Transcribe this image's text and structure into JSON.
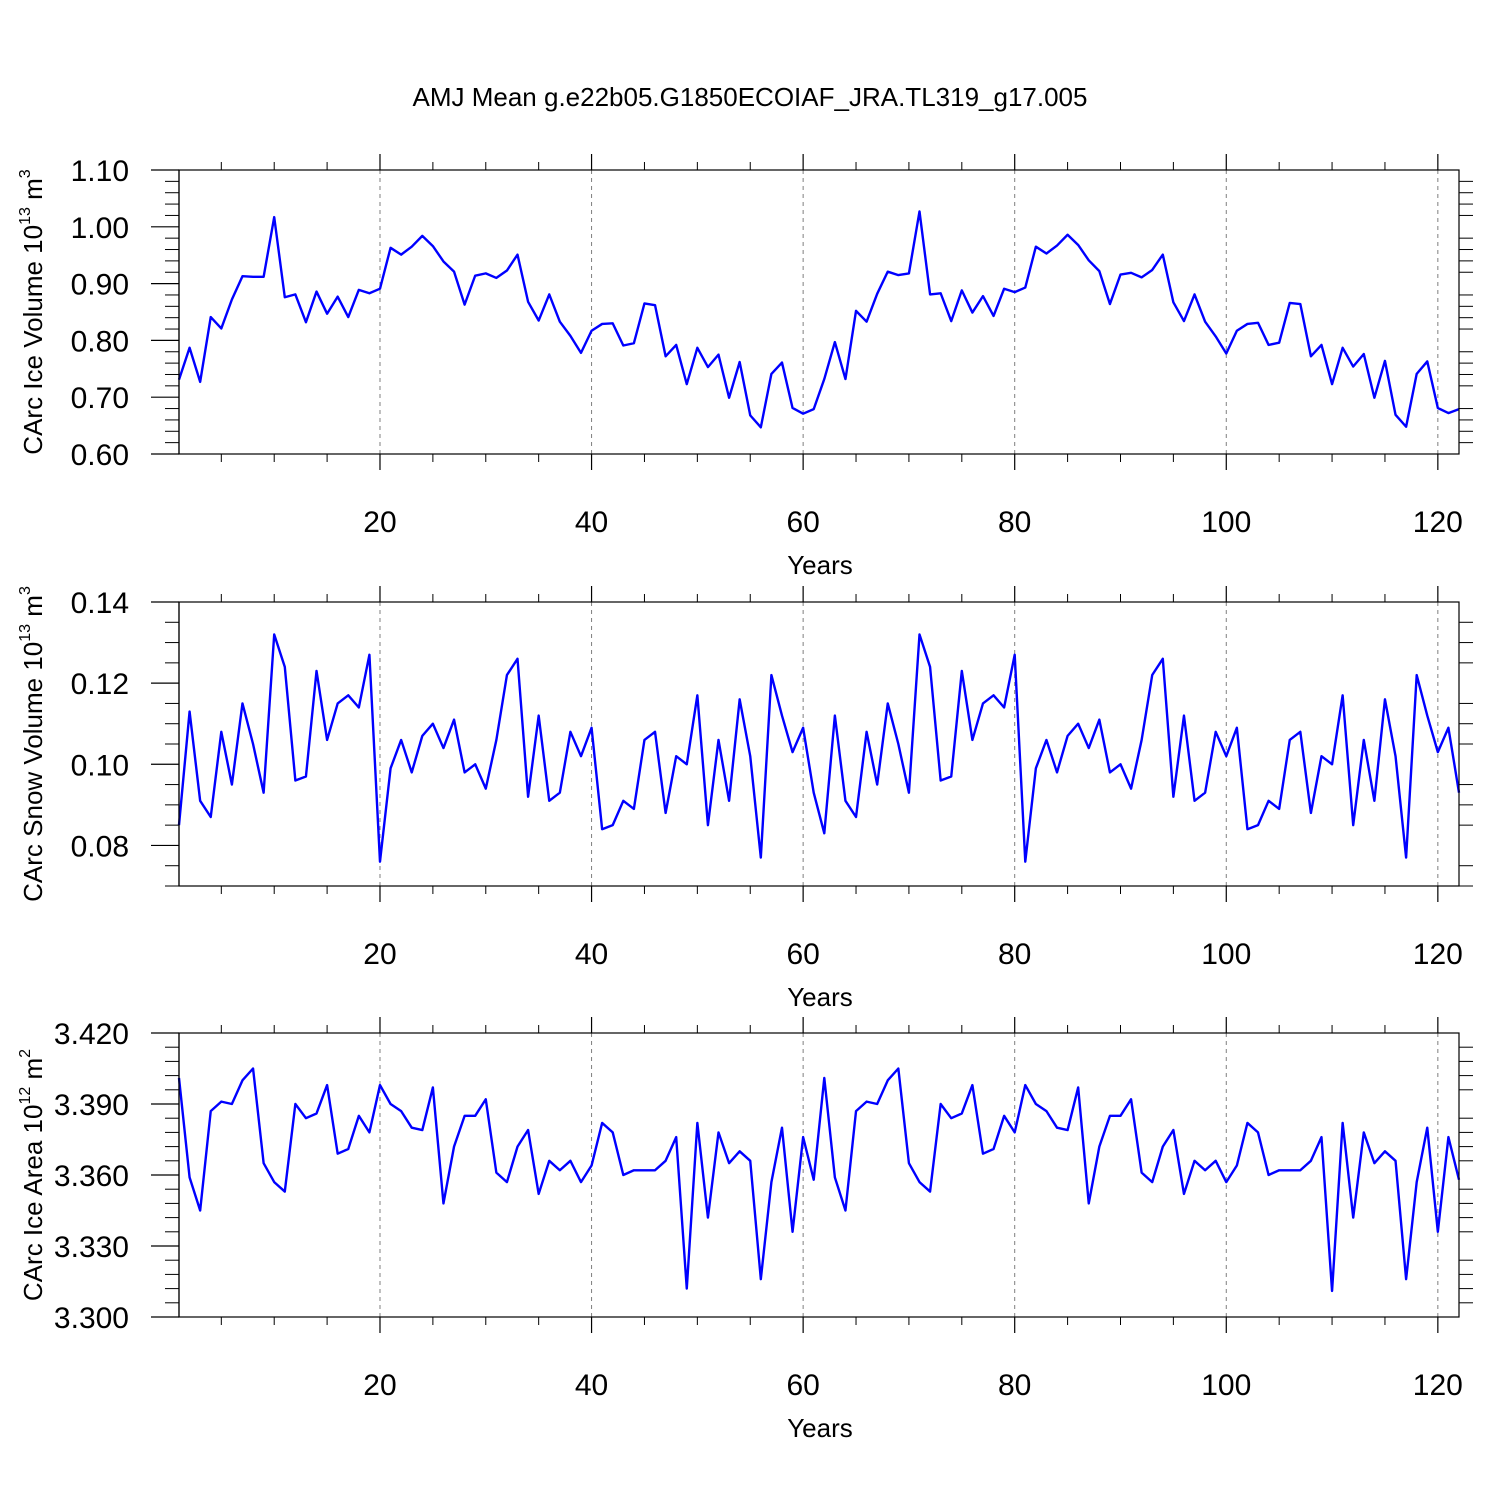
{
  "figure": {
    "title": "AMJ Mean g.e22b05.G1850ECOIAF_JRA.TL319_g17.005"
  },
  "colors": {
    "line": "#0000ff",
    "axis": "#000000",
    "grid": "#7f7f7f"
  },
  "chart_data": [
    {
      "type": "line",
      "ylabel_main": "CArc Ice Volume 10",
      "ylabel_exp": "13",
      "ylabel_tail": " m",
      "ylabel_exp2": "3",
      "xlabel": "Years",
      "xlim": [
        1,
        122
      ],
      "ylim": [
        0.6,
        1.1
      ],
      "xticks": [
        20,
        40,
        60,
        80,
        100,
        120
      ],
      "yticks": [
        "0.60",
        "0.70",
        "0.80",
        "0.90",
        "1.00",
        "1.10"
      ],
      "grid": "vertical dashed at major x ticks",
      "series": [
        {
          "values": [
            0.731,
            0.787,
            0.727,
            0.841,
            0.821,
            0.872,
            0.913,
            0.912,
            0.912,
            1.017,
            0.876,
            0.881,
            0.832,
            0.886,
            0.847,
            0.877,
            0.841,
            0.889,
            0.883,
            0.891,
            0.963,
            0.951,
            0.965,
            0.984,
            0.966,
            0.939,
            0.921,
            0.863,
            0.914,
            0.918,
            0.91,
            0.923,
            0.951,
            0.868,
            0.835,
            0.881,
            0.833,
            0.808,
            0.778,
            0.817,
            0.829,
            0.83,
            0.791,
            0.795,
            0.865,
            0.862,
            0.772,
            0.792,
            0.723,
            0.787,
            0.753,
            0.775,
            0.699,
            0.762,
            0.668,
            0.647,
            0.741,
            0.761,
            0.681,
            0.671,
            0.679,
            0.732,
            0.797,
            0.732,
            0.852,
            0.833,
            0.882,
            0.921,
            0.915,
            0.918,
            1.027,
            0.881,
            0.883,
            0.834,
            0.888,
            0.849,
            0.878,
            0.843,
            0.891,
            0.885,
            0.893,
            0.965,
            0.953,
            0.967,
            0.986,
            0.968,
            0.941,
            0.922,
            0.864,
            0.916,
            0.919,
            0.911,
            0.924,
            0.951,
            0.867,
            0.834,
            0.881,
            0.833,
            0.807,
            0.777,
            0.817,
            0.829,
            0.831,
            0.792,
            0.796,
            0.866,
            0.864,
            0.772,
            0.792,
            0.723,
            0.787,
            0.754,
            0.776,
            0.699,
            0.764,
            0.669,
            0.648,
            0.741,
            0.763,
            0.681,
            0.672,
            0.679
          ]
        }
      ]
    },
    {
      "type": "line",
      "ylabel_main": "CArc Snow Volume 10",
      "ylabel_exp": "13",
      "ylabel_tail": " m",
      "ylabel_exp2": "3",
      "xlabel": "Years",
      "xlim": [
        1,
        122
      ],
      "ylim": [
        0.07,
        0.14
      ],
      "xticks": [
        20,
        40,
        60,
        80,
        100,
        120
      ],
      "yticks": [
        "0.08",
        "0.10",
        "0.12",
        "0.14"
      ],
      "grid": "vertical dashed at major x ticks",
      "series": [
        {
          "values": [
            0.085,
            0.113,
            0.091,
            0.087,
            0.108,
            0.095,
            0.115,
            0.105,
            0.093,
            0.132,
            0.124,
            0.096,
            0.097,
            0.123,
            0.106,
            0.115,
            0.117,
            0.114,
            0.127,
            0.076,
            0.099,
            0.106,
            0.098,
            0.107,
            0.11,
            0.104,
            0.111,
            0.098,
            0.1,
            0.094,
            0.106,
            0.122,
            0.126,
            0.092,
            0.112,
            0.091,
            0.093,
            0.108,
            0.102,
            0.109,
            0.084,
            0.085,
            0.091,
            0.089,
            0.106,
            0.108,
            0.088,
            0.102,
            0.1,
            0.117,
            0.085,
            0.106,
            0.091,
            0.116,
            0.102,
            0.077,
            0.122,
            0.112,
            0.103,
            0.109,
            0.093,
            0.083,
            0.112,
            0.091,
            0.087,
            0.108,
            0.095,
            0.115,
            0.105,
            0.093,
            0.132,
            0.124,
            0.096,
            0.097,
            0.123,
            0.106,
            0.115,
            0.117,
            0.114,
            0.127,
            0.076,
            0.099,
            0.106,
            0.098,
            0.107,
            0.11,
            0.104,
            0.111,
            0.098,
            0.1,
            0.094,
            0.106,
            0.122,
            0.126,
            0.092,
            0.112,
            0.091,
            0.093,
            0.108,
            0.102,
            0.109,
            0.084,
            0.085,
            0.091,
            0.089,
            0.106,
            0.108,
            0.088,
            0.102,
            0.1,
            0.117,
            0.085,
            0.106,
            0.091,
            0.116,
            0.102,
            0.077,
            0.122,
            0.112,
            0.103,
            0.109,
            0.093
          ]
        }
      ]
    },
    {
      "type": "line",
      "ylabel_main": "CArc Ice Area 10",
      "ylabel_exp": "12",
      "ylabel_tail": " m",
      "ylabel_exp2": "2",
      "xlabel": "Years",
      "xlim": [
        1,
        122
      ],
      "ylim": [
        3.3,
        3.42
      ],
      "xticks": [
        20,
        40,
        60,
        80,
        100,
        120
      ],
      "yticks": [
        "3.300",
        "3.330",
        "3.360",
        "3.390",
        "3.420"
      ],
      "grid": "vertical dashed at major x ticks",
      "series": [
        {
          "values": [
            3.401,
            3.359,
            3.345,
            3.387,
            3.391,
            3.39,
            3.4,
            3.405,
            3.365,
            3.357,
            3.353,
            3.39,
            3.384,
            3.386,
            3.398,
            3.369,
            3.371,
            3.385,
            3.378,
            3.398,
            3.39,
            3.387,
            3.38,
            3.379,
            3.397,
            3.348,
            3.372,
            3.385,
            3.385,
            3.392,
            3.361,
            3.357,
            3.372,
            3.379,
            3.352,
            3.366,
            3.362,
            3.366,
            3.357,
            3.364,
            3.382,
            3.378,
            3.36,
            3.362,
            3.362,
            3.362,
            3.366,
            3.376,
            3.312,
            3.382,
            3.342,
            3.378,
            3.365,
            3.37,
            3.366,
            3.316,
            3.357,
            3.38,
            3.336,
            3.376,
            3.358,
            3.401,
            3.359,
            3.345,
            3.387,
            3.391,
            3.39,
            3.4,
            3.405,
            3.365,
            3.357,
            3.353,
            3.39,
            3.384,
            3.386,
            3.398,
            3.369,
            3.371,
            3.385,
            3.378,
            3.398,
            3.39,
            3.387,
            3.38,
            3.379,
            3.397,
            3.348,
            3.372,
            3.385,
            3.385,
            3.392,
            3.361,
            3.357,
            3.372,
            3.379,
            3.352,
            3.366,
            3.362,
            3.366,
            3.357,
            3.364,
            3.382,
            3.378,
            3.36,
            3.362,
            3.362,
            3.362,
            3.366,
            3.376,
            3.311,
            3.382,
            3.342,
            3.378,
            3.365,
            3.37,
            3.366,
            3.316,
            3.357,
            3.38,
            3.336,
            3.376,
            3.358
          ]
        }
      ]
    }
  ]
}
